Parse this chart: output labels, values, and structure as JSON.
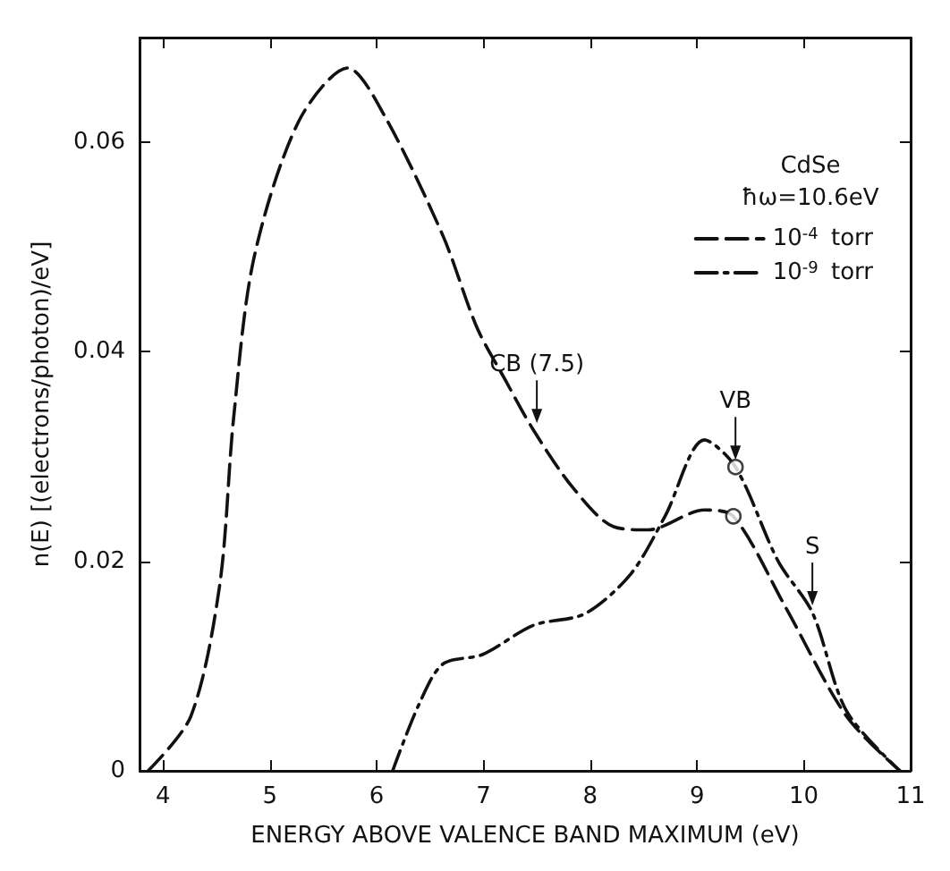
{
  "chart_data": {
    "type": "line",
    "xlabel": "ENERGY ABOVE VALENCE BAND MAXIMUM (eV)",
    "ylabel": "n(E) [(electrons/photon)/eV]",
    "legend_title": "CdSe\nħω=10.6eV",
    "legend": "top right",
    "xlim": [
      3.78,
      11
    ],
    "xticks": [
      4,
      5,
      6,
      7,
      8,
      9,
      10,
      11
    ],
    "ylim": [
      0,
      0.07
    ],
    "yticks": [
      0,
      0.02,
      0.04,
      0.06
    ],
    "grid": false,
    "series": [
      {
        "name": "10$^{-4}$ torr",
        "color": "#111111",
        "line_style": "dashed",
        "x": [
          3.86,
          4.26,
          4.53,
          4.66,
          4.85,
          5.27,
          5.73,
          6.07,
          6.62,
          6.94,
          7.2,
          7.47,
          7.84,
          8.22,
          8.54,
          9.07,
          9.34,
          9.83,
          10.4,
          10.9
        ],
        "values": [
          0,
          0.0052,
          0.0177,
          0.0336,
          0.0489,
          0.062,
          0.0671,
          0.0626,
          0.0511,
          0.0423,
          0.0374,
          0.0325,
          0.027,
          0.0233,
          0.023,
          0.0249,
          0.0243,
          0.0156,
          0.0052,
          0
        ]
      },
      {
        "name": "10$^{-9}$ torr",
        "color": "#111111",
        "line_style": "dashdot",
        "x": [
          6.15,
          6.39,
          6.62,
          6.99,
          7.47,
          7.95,
          8.38,
          8.7,
          9.07,
          9.36,
          9.76,
          10.08,
          10.4,
          10.9
        ],
        "values": [
          0,
          0.0062,
          0.0102,
          0.0111,
          0.0139,
          0.015,
          0.0188,
          0.0243,
          0.0316,
          0.029,
          0.02,
          0.0151,
          0.0057,
          0
        ]
      },
      {
        "type": "scatter",
        "marker": "circle",
        "color": "#111111",
        "x": [
          9.36,
          9.34
        ],
        "values": [
          0.029,
          0.0243
        ]
      }
    ],
    "annotations": [
      {
        "text": "CB (7.5)",
        "x": 7.5,
        "y": 0.0325
      },
      {
        "text": "VB",
        "x": 9.36,
        "y": 0.029
      },
      {
        "text": "S",
        "x": 10.08,
        "y": 0.0151
      }
    ]
  }
}
